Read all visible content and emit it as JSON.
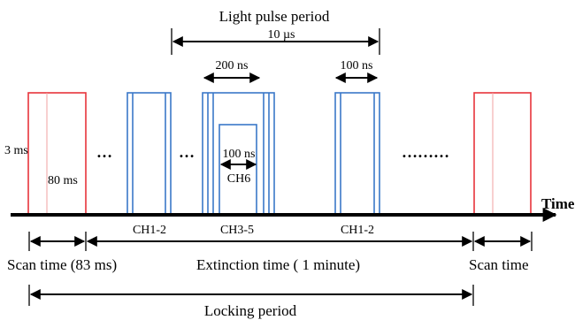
{
  "labels": {
    "light_pulse_period": "Light pulse period",
    "period_10us": "10 µs",
    "ns200": "200 ns",
    "ns100_top": "100 ns",
    "ms3": "3 ms",
    "ms80": "80 ms",
    "dots1": "…",
    "dots2": "…",
    "dots3": "………",
    "ns100_ch6": "100 ns",
    "ch6": "CH6",
    "time": "Time",
    "ch1_2_left": "CH1-2",
    "ch3_5": "CH3-5",
    "ch1_2_right": "CH1-2",
    "scan_time_83": "Scan time (83 ms)",
    "extinction_time": "Extinction time ( 1 minute)",
    "scan_time": "Scan time",
    "locking_period": "Locking period"
  },
  "colors": {
    "scan_pulse": "#e8343b",
    "light_pulse": "#3a78c8",
    "axis": "#000000"
  }
}
